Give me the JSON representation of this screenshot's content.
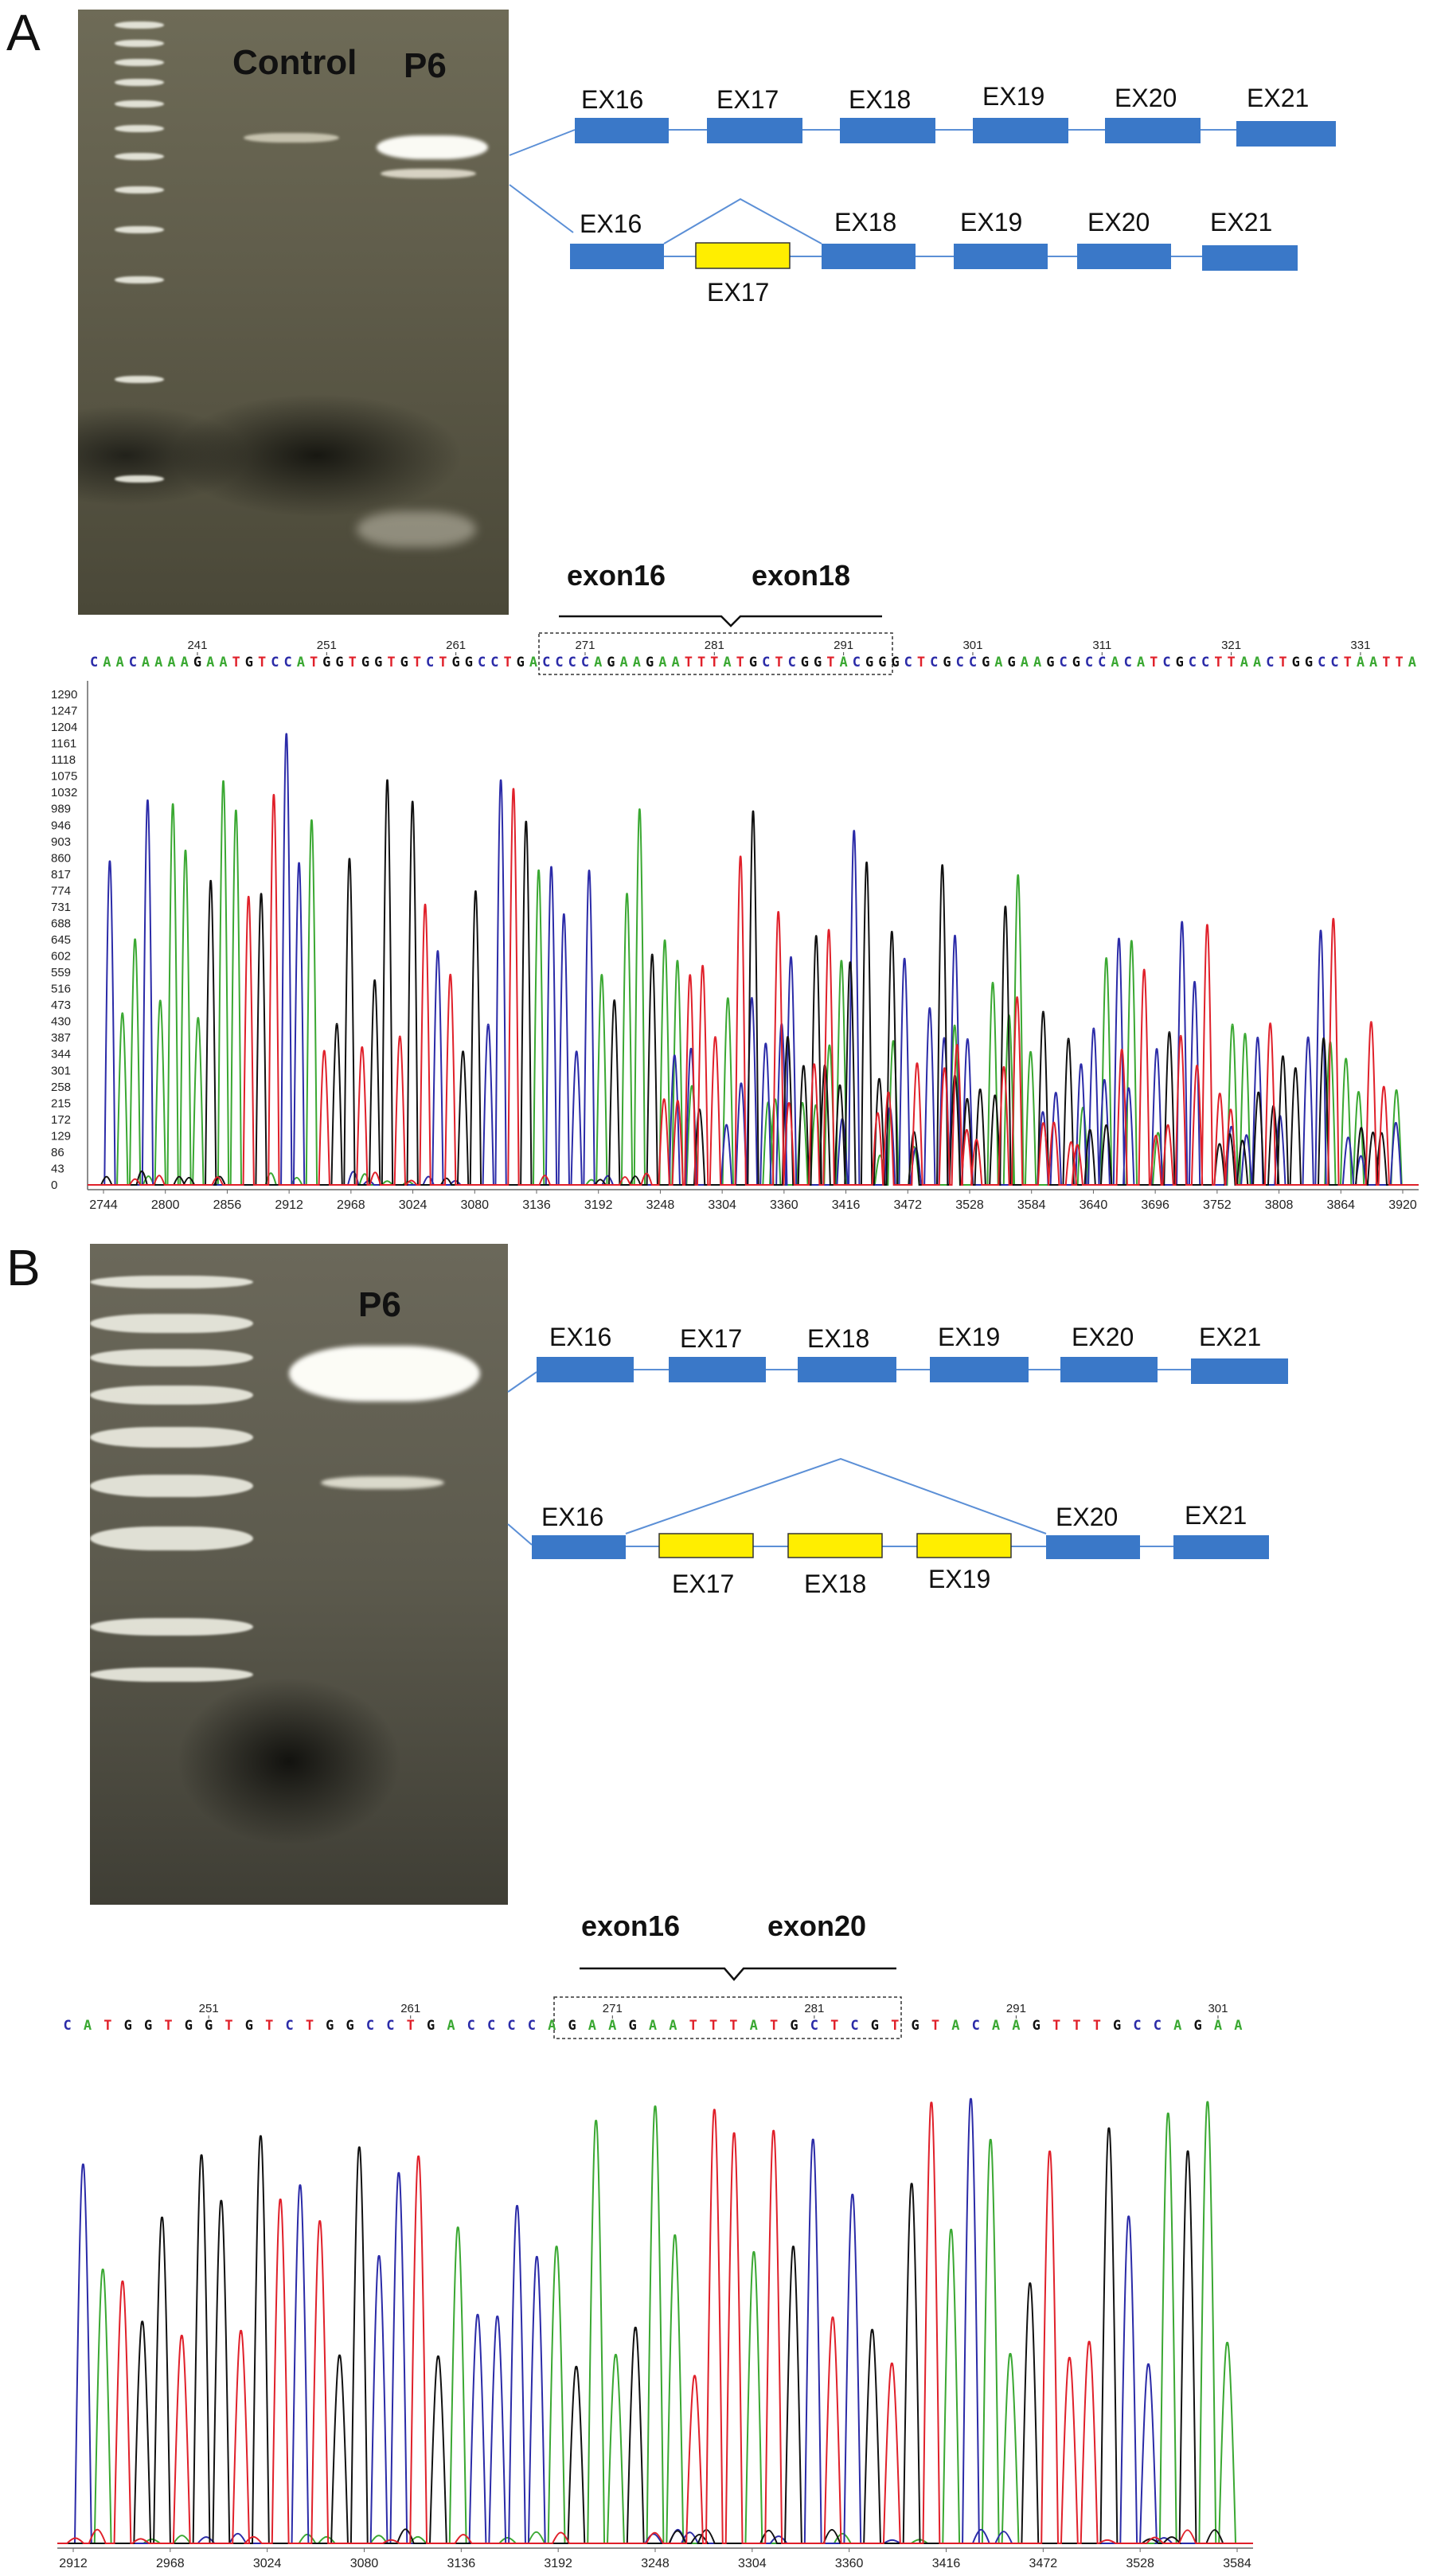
{
  "panels": [
    {
      "letter": "A",
      "gel": {
        "lane_labels": [
          "Control",
          "P6"
        ]
      },
      "diagrams": {
        "normal": [
          "EX16",
          "EX17",
          "EX18",
          "EX19",
          "EX20",
          "EX21"
        ],
        "skipped": {
          "exons": [
            "EX16",
            "EX17",
            "EX18",
            "EX19",
            "EX20",
            "EX21"
          ],
          "skipped": [
            "EX17"
          ]
        }
      },
      "junction": {
        "left": "exon16",
        "right": "exon18"
      },
      "sequence": "CAACAAAAGAATGTCCATGGTGGTGTCTGGCCTGACCCCAGAAGAATTTATGCTCGGTACGGGCTCGCCGAGAAGCGCCACATCGCCTTAACTGGCCTAATTA",
      "position_labels": [
        "241",
        "251",
        "261",
        "271",
        "281",
        "291",
        "301",
        "311",
        "321",
        "331"
      ],
      "y_ticks": [
        "1290",
        "1247",
        "1204",
        "1161",
        "1118",
        "1075",
        "1032",
        "989",
        "946",
        "903",
        "860",
        "817",
        "774",
        "731",
        "688",
        "645",
        "602",
        "559",
        "516",
        "473",
        "430",
        "387",
        "344",
        "301",
        "258",
        "215",
        "172",
        "129",
        "86",
        "43",
        "0"
      ],
      "x_ticks": [
        "2744",
        "2800",
        "2856",
        "2912",
        "2968",
        "3024",
        "3080",
        "3136",
        "3192",
        "3248",
        "3304",
        "3360",
        "3416",
        "3472",
        "3528",
        "3584",
        "3640",
        "3696",
        "3752",
        "3808",
        "3864",
        "3920"
      ],
      "colors": {
        "A": "#3aa832",
        "C": "#2b2ba8",
        "G": "#111111",
        "T": "#e0202a"
      }
    },
    {
      "letter": "B",
      "gel": {
        "lane_labels": [
          "P6"
        ]
      },
      "diagrams": {
        "normal": [
          "EX16",
          "EX17",
          "EX18",
          "EX19",
          "EX20",
          "EX21"
        ],
        "skipped": {
          "exons": [
            "EX16",
            "EX17",
            "EX18",
            "EX19",
            "EX20",
            "EX21"
          ],
          "skipped": [
            "EX17",
            "EX18",
            "EX19"
          ]
        }
      },
      "junction": {
        "left": "exon16",
        "right": "exon20"
      },
      "sequence": "CATGGTGGTGTCTGGCCTGACCCCAGAAGAATTTATGCTCGTGTACAAGTTTGCCAGAA",
      "position_labels": [
        "251",
        "261",
        "271",
        "281",
        "291",
        "301"
      ],
      "x_ticks": [
        "2912",
        "2968",
        "3024",
        "3080",
        "3136",
        "3192",
        "3248",
        "3304",
        "3360",
        "3416",
        "3472",
        "3528",
        "3584"
      ],
      "colors": {
        "A": "#3aa832",
        "C": "#2b2ba8",
        "G": "#111111",
        "T": "#e0202a"
      }
    }
  ],
  "colors": {
    "exon": "#3a78c8",
    "skipped_exon": "#ffee00",
    "line": "#5b8fd6"
  }
}
